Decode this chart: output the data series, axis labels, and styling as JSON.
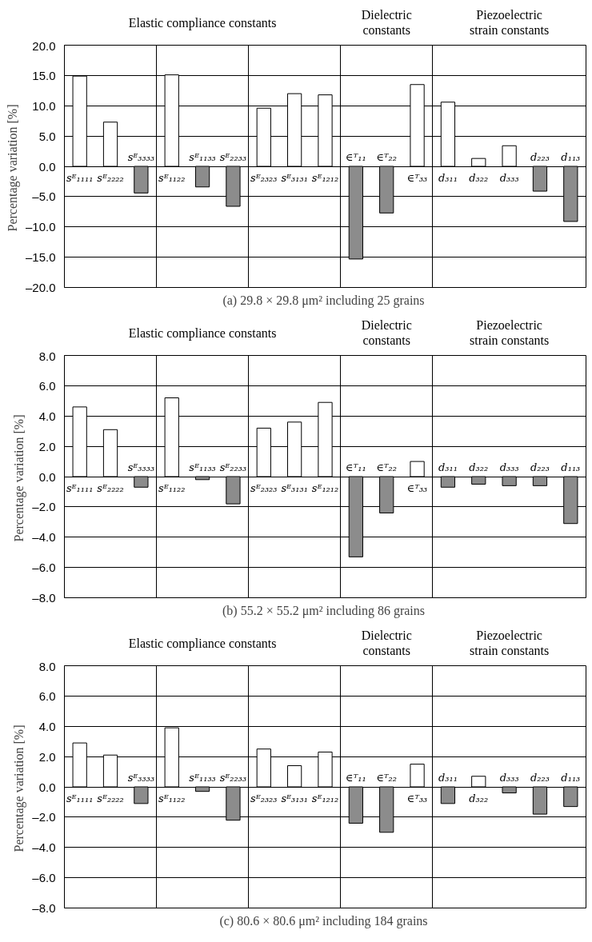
{
  "chart_data": [
    {
      "type": "bar",
      "title": "(a) 29.8 × 29.8  μm² including 25 grains",
      "ylabel": "Percentage variation  [%]",
      "annotations": [
        "Elastic compliance constants",
        "Dielectric constants",
        "Piezoelectric strain constants"
      ],
      "categories": [
        "sᴱ₁₁₁₁",
        "sᴱ₂₂₂₂",
        "sᴱ₃₃₃₃",
        "sᴱ₁₁₂₂",
        "sᴱ₁₁₃₃",
        "sᴱ₂₂₃₃",
        "sᴱ₂₃₂₃",
        "sᴱ₃₁₃₁",
        "sᴱ₁₂₁₂",
        "∈ᵀ₁₁",
        "∈ᵀ₂₂",
        "∈ᵀ₃₃",
        "d₃₁₁",
        "d₃₂₂",
        "d₃₃₃",
        "d₂₂₃",
        "d₁₁₃"
      ],
      "values": [
        14.9,
        7.3,
        -4.4,
        15.1,
        -3.4,
        -6.6,
        9.6,
        12.0,
        11.8,
        -15.3,
        -7.7,
        13.5,
        10.6,
        1.3,
        3.4,
        -4.1,
        -9.1
      ],
      "colors": [
        "#ffffff",
        "#ffffff",
        "#8c8c8c",
        "#ffffff",
        "#8c8c8c",
        "#8c8c8c",
        "#ffffff",
        "#ffffff",
        "#ffffff",
        "#8c8c8c",
        "#8c8c8c",
        "#ffffff",
        "#ffffff",
        "#ffffff",
        "#ffffff",
        "#8c8c8c",
        "#8c8c8c"
      ],
      "ylim": [
        -20,
        20
      ],
      "yticks": [
        {
          "value": -20,
          "label": "–20.0"
        },
        {
          "value": -15,
          "label": "–15.0"
        },
        {
          "value": -10,
          "label": "–10.0"
        },
        {
          "value": -5,
          "label": "–5.0"
        },
        {
          "value": 0,
          "label": "0.0"
        },
        {
          "value": 5,
          "label": "5.0"
        },
        {
          "value": 10,
          "label": "10.0"
        },
        {
          "value": 15,
          "label": "15.0"
        },
        {
          "value": 20,
          "label": "20.0"
        }
      ],
      "grid": true
    },
    {
      "type": "bar",
      "title": "(b) 55.2 × 55.2  μm² including 86 grains",
      "ylabel": "Percentage variation  [%]",
      "annotations": [
        "Elastic compliance constants",
        "Dielectric constants",
        "Piezoelectric strain constants"
      ],
      "categories": [
        "sᴱ₁₁₁₁",
        "sᴱ₂₂₂₂",
        "sᴱ₃₃₃₃",
        "sᴱ₁₁₂₂",
        "sᴱ₁₁₃₃",
        "sᴱ₂₂₃₃",
        "sᴱ₂₃₂₃",
        "sᴱ₃₁₃₁",
        "sᴱ₁₂₁₂",
        "∈ᵀ₁₁",
        "∈ᵀ₂₂",
        "∈ᵀ₃₃",
        "d₃₁₁",
        "d₃₂₂",
        "d₃₃₃",
        "d₂₂₃",
        "d₁₁₃"
      ],
      "values": [
        4.6,
        3.1,
        -0.7,
        5.2,
        -0.2,
        -1.8,
        3.2,
        3.6,
        4.9,
        -5.3,
        -2.4,
        1.0,
        -0.7,
        -0.5,
        -0.6,
        -0.6,
        -3.1
      ],
      "colors": [
        "#ffffff",
        "#ffffff",
        "#8c8c8c",
        "#ffffff",
        "#8c8c8c",
        "#8c8c8c",
        "#ffffff",
        "#ffffff",
        "#ffffff",
        "#8c8c8c",
        "#8c8c8c",
        "#ffffff",
        "#8c8c8c",
        "#8c8c8c",
        "#8c8c8c",
        "#8c8c8c",
        "#8c8c8c"
      ],
      "ylim": [
        -8,
        8
      ],
      "yticks": [
        {
          "value": -8,
          "label": "–8.0"
        },
        {
          "value": -6,
          "label": "–6.0"
        },
        {
          "value": -4,
          "label": "–4.0"
        },
        {
          "value": -2,
          "label": "–2.0"
        },
        {
          "value": 0,
          "label": "0.0"
        },
        {
          "value": 2,
          "label": "2.0"
        },
        {
          "value": 4,
          "label": "4.0"
        },
        {
          "value": 6,
          "label": "6.0"
        },
        {
          "value": 8,
          "label": "8.0"
        }
      ],
      "grid": true
    },
    {
      "type": "bar",
      "title": "(c) 80.6 × 80.6  μm² including 184 grains",
      "ylabel": "Percentage variation  [%]",
      "annotations": [
        "Elastic compliance constants",
        "Dielectric constants",
        "Piezoelectric strain constants"
      ],
      "categories": [
        "sᴱ₁₁₁₁",
        "sᴱ₂₂₂₂",
        "sᴱ₃₃₃₃",
        "sᴱ₁₁₂₂",
        "sᴱ₁₁₃₃",
        "sᴱ₂₂₃₃",
        "sᴱ₂₃₂₃",
        "sᴱ₃₁₃₁",
        "sᴱ₁₂₁₂",
        "∈ᵀ₁₁",
        "∈ᵀ₂₂",
        "∈ᵀ₃₃",
        "d₃₁₁",
        "d₃₂₂",
        "d₃₃₃",
        "d₂₂₃",
        "d₁₁₃"
      ],
      "values": [
        2.9,
        2.1,
        -1.1,
        3.9,
        -0.3,
        -2.2,
        2.5,
        1.4,
        2.3,
        -2.4,
        -3.0,
        1.5,
        -1.1,
        0.7,
        -0.4,
        -1.8,
        -1.3
      ],
      "colors": [
        "#ffffff",
        "#ffffff",
        "#8c8c8c",
        "#ffffff",
        "#8c8c8c",
        "#8c8c8c",
        "#ffffff",
        "#ffffff",
        "#ffffff",
        "#8c8c8c",
        "#8c8c8c",
        "#ffffff",
        "#8c8c8c",
        "#ffffff",
        "#8c8c8c",
        "#8c8c8c",
        "#8c8c8c"
      ],
      "ylim": [
        -8,
        8
      ],
      "yticks": [
        {
          "value": -8,
          "label": "–8.0"
        },
        {
          "value": -6,
          "label": "–6.0"
        },
        {
          "value": -4,
          "label": "–4.0"
        },
        {
          "value": -2,
          "label": "–2.0"
        },
        {
          "value": 0,
          "label": "0.0"
        },
        {
          "value": 2,
          "label": "2.0"
        },
        {
          "value": 4,
          "label": "4.0"
        },
        {
          "value": 6,
          "label": "6.0"
        },
        {
          "value": 8,
          "label": "8.0"
        }
      ],
      "grid": true
    }
  ]
}
